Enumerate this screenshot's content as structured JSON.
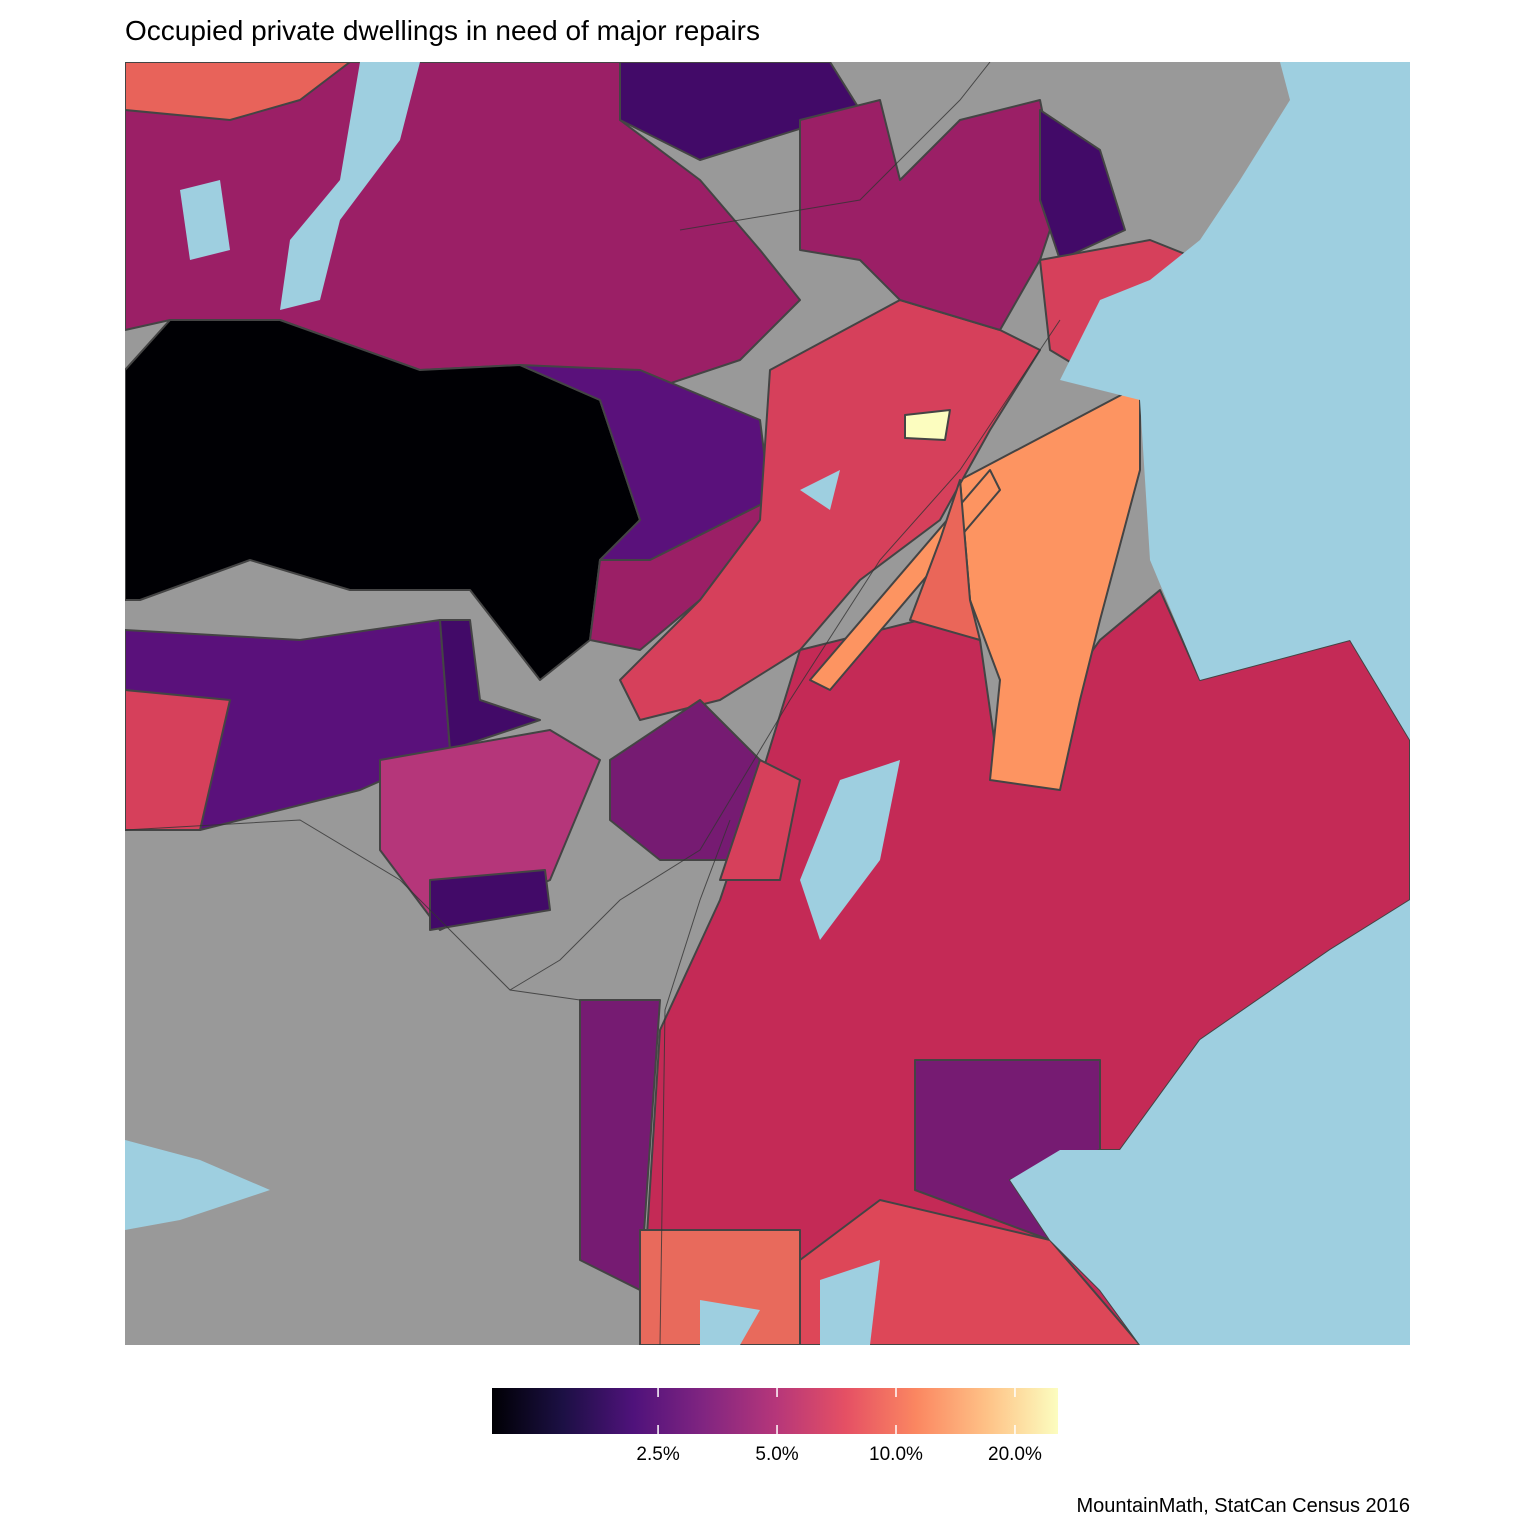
{
  "title": "Occupied private dwellings in need of major repairs",
  "legend": {
    "scale": "log",
    "lim": [
      0.95,
      25.7
    ],
    "ticks": [
      {
        "value": 2.5,
        "label": "2.5%"
      },
      {
        "value": 5,
        "label": "5.0%"
      },
      {
        "value": 10,
        "label": "10.0%"
      },
      {
        "value": 20,
        "label": "20.0%"
      }
    ],
    "colors": [
      "#000004",
      "#1c1044",
      "#4f127b",
      "#812581",
      "#b5367a",
      "#e55064",
      "#fb8761",
      "#fec287",
      "#fcfdbf"
    ]
  },
  "caption": "MountainMath, StatCan Census 2016"
}
